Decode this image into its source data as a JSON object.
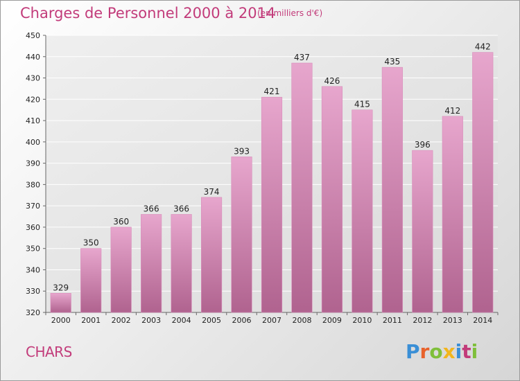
{
  "header": {
    "title": "Charges de Personnel 2000 à 2014",
    "unit": "(en milliers d'€)"
  },
  "footer": {
    "commune": "CHARS",
    "logo": [
      "P",
      "r",
      "o",
      "x",
      "i",
      "t",
      "i"
    ],
    "logo_colors": [
      "#3a8fd6",
      "#e8622c",
      "#7fbf3a",
      "#f2b51d",
      "#3a8fd6",
      "#c23b7a",
      "#7fbf3a"
    ]
  },
  "colors": {
    "bar_light": "#e7a6cd",
    "bar_dark": "#b0638f",
    "axis": "#666666",
    "grid": "#ffffff"
  },
  "chart_data": {
    "type": "bar",
    "title": "Charges de Personnel 2000 à 2014",
    "xlabel": "",
    "ylabel": "",
    "categories": [
      "2000",
      "2001",
      "2002",
      "2003",
      "2004",
      "2005",
      "2006",
      "2007",
      "2008",
      "2009",
      "2010",
      "2011",
      "2012",
      "2013",
      "2014"
    ],
    "values": [
      329,
      350,
      360,
      366,
      366,
      374,
      393,
      421,
      437,
      426,
      415,
      435,
      396,
      412,
      442
    ],
    "ylim": [
      320,
      450
    ],
    "yticks": [
      320,
      330,
      340,
      350,
      360,
      370,
      380,
      390,
      400,
      410,
      420,
      430,
      440,
      450
    ],
    "grid": true
  }
}
